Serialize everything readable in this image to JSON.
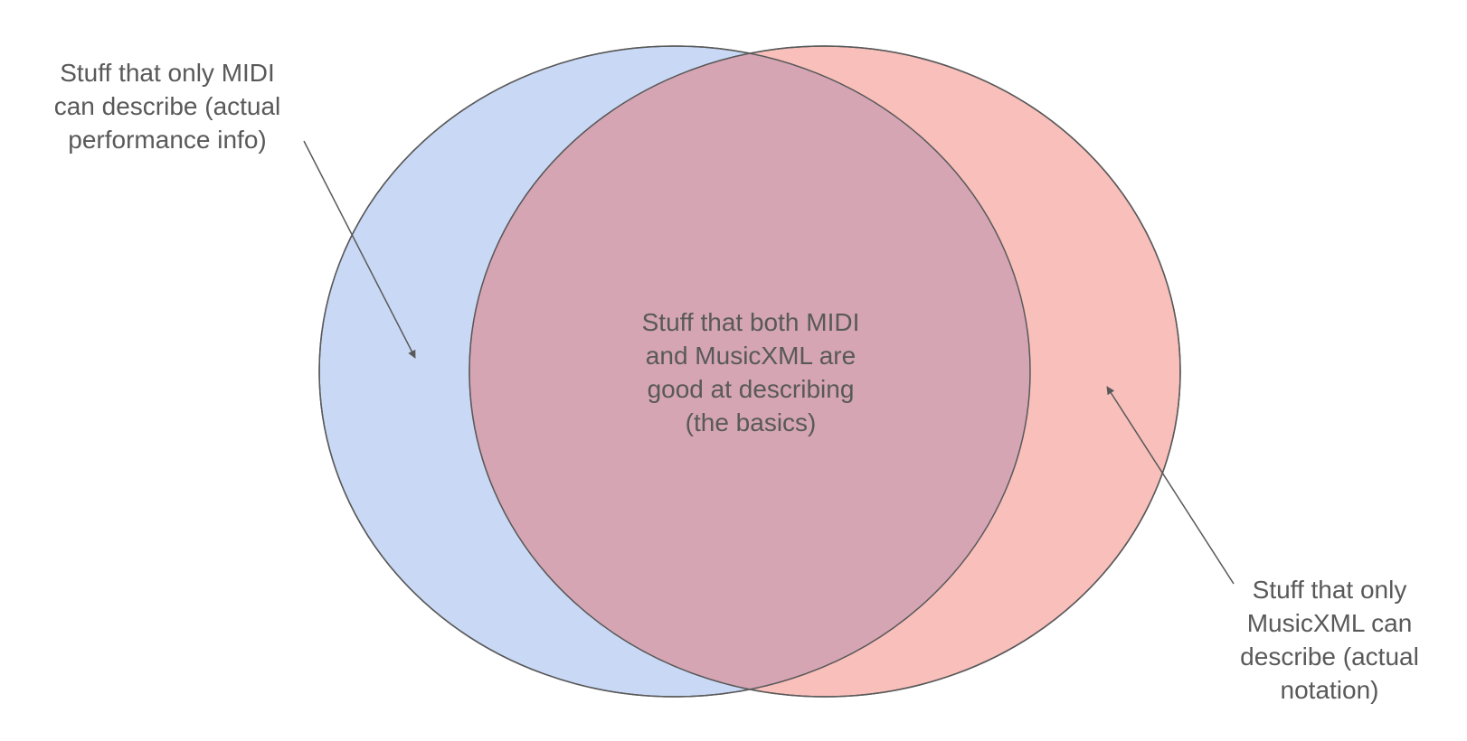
{
  "sets": [
    {
      "id": "midi",
      "fill": "#c9d9f5",
      "stroke": "#595959"
    },
    {
      "id": "musicxml",
      "fill": "#f8bfbb",
      "stroke": "#595959"
    }
  ],
  "overlap": {
    "fill": "#d5a5b4"
  },
  "labels": {
    "midi_only": [
      "Stuff that only MIDI",
      "can describe (actual",
      "performance info)"
    ],
    "both": [
      "Stuff that both MIDI",
      "and MusicXML are",
      "good at describing",
      "(the basics)"
    ],
    "musicxml_only": [
      "Stuff that only",
      "MusicXML can",
      "describe (actual",
      "notation)"
    ]
  },
  "colors": {
    "text": "#595959",
    "outline": "#595959",
    "background": "#ffffff"
  }
}
